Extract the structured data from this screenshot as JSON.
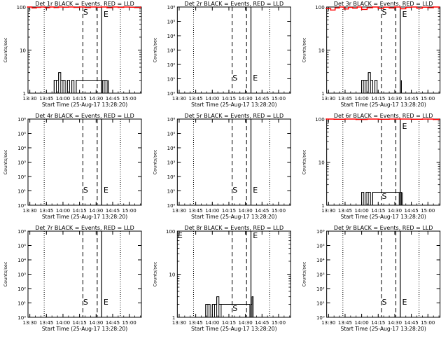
{
  "figure": {
    "xlabel": "Start Time (25-Aug-17 13:28:20)",
    "ylabel": "Counts/sec",
    "x_tick_labels": [
      "13:30",
      "13:45",
      "14:00",
      "14:15",
      "14:30",
      "14:45",
      "15:00"
    ],
    "colors": {
      "events": "#000000",
      "lld": "#ff0000"
    }
  },
  "chart_data": [
    {
      "type": "line",
      "title": "Det 1r BLACK = Events, RED = LLD",
      "xlabel": "Start Time (25-Aug-17 13:28:20)",
      "ylabel": "Counts/sec",
      "x_range": [
        "13:28:20",
        "15:11:00"
      ],
      "y_scale": "log",
      "ylim": [
        1,
        100
      ],
      "y_tick_labels": [
        "1",
        "10",
        "100"
      ],
      "y_tick_values": [
        1,
        10,
        100
      ],
      "annotations": [
        {
          "text": "S",
          "time": "14:18"
        },
        {
          "text": "E",
          "time": "14:37"
        }
      ],
      "vlines": [
        {
          "time": "13:43",
          "style": "dotted"
        },
        {
          "time": "14:18",
          "style": "dashed"
        },
        {
          "time": "14:31",
          "style": "dashed"
        },
        {
          "time": "14:35",
          "style": "solid"
        },
        {
          "time": "14:52",
          "style": "dotted"
        }
      ],
      "series": [
        {
          "color": "black",
          "x": [
            "13:50",
            "13:52",
            "13:54",
            "13:56",
            "13:58",
            "14:00",
            "14:02",
            "14:04",
            "14:06",
            "14:08",
            "14:10",
            "14:12",
            "14:35",
            "14:36",
            "14:38",
            "14:40",
            "14:41"
          ],
          "y": [
            1,
            2,
            2,
            3,
            2,
            2,
            1,
            2,
            1,
            2,
            1,
            2,
            1,
            2,
            2,
            1,
            2
          ]
        },
        {
          "color": "red",
          "x": [
            "13:28",
            "13:32",
            "13:36",
            "13:40",
            "13:44",
            "13:48",
            "13:52",
            "13:56",
            "14:00",
            "14:05",
            "14:10",
            "14:15",
            "14:20",
            "14:25",
            "14:30",
            "14:35",
            "14:40",
            "14:45",
            "14:50",
            "14:55",
            "15:00",
            "15:05",
            "15:10"
          ],
          "y": [
            100,
            95,
            98,
            100,
            96,
            100,
            97,
            100,
            99,
            100,
            98,
            100,
            97,
            100,
            99,
            100,
            96,
            100,
            98,
            100,
            99,
            97,
            100
          ]
        }
      ]
    },
    {
      "type": "line",
      "title": "Det 2r BLACK = Events, RED = LLD",
      "xlabel": "Start Time (25-Aug-17 13:28:20)",
      "ylabel": "Counts/sec",
      "x_range": [
        "13:28:20",
        "15:11:00"
      ],
      "y_scale": "log",
      "ylim": [
        1,
        1000000
      ],
      "y_tick_labels": [
        "10⁰",
        "10¹",
        "10²",
        "10³",
        "10⁴",
        "10⁵",
        "10⁶"
      ],
      "y_tick_values": [
        1,
        10,
        100,
        1000,
        10000,
        100000,
        1000000
      ],
      "annotations": [
        {
          "text": "S",
          "time": "14:18"
        },
        {
          "text": "E",
          "time": "14:37"
        }
      ],
      "vlines": [
        {
          "time": "13:43",
          "style": "dotted"
        },
        {
          "time": "14:18",
          "style": "dashed"
        },
        {
          "time": "14:31",
          "style": "dashed"
        },
        {
          "time": "14:35",
          "style": "solid"
        },
        {
          "time": "14:52",
          "style": "dotted"
        }
      ],
      "series": []
    },
    {
      "type": "line",
      "title": "Det 3r BLACK = Events, RED = LLD",
      "xlabel": "Start Time (25-Aug-17 13:28:20)",
      "ylabel": "Counts/sec",
      "x_range": [
        "13:28:20",
        "15:11:00"
      ],
      "y_scale": "log",
      "ylim": [
        1,
        100
      ],
      "y_tick_labels": [
        "1",
        "10",
        "100"
      ],
      "y_tick_values": [
        1,
        10,
        100
      ],
      "annotations": [
        {
          "text": "S",
          "time": "14:18"
        },
        {
          "text": "E",
          "time": "14:37"
        }
      ],
      "vlines": [
        {
          "time": "13:43",
          "style": "dotted"
        },
        {
          "time": "14:18",
          "style": "dashed"
        },
        {
          "time": "14:31",
          "style": "dashed"
        },
        {
          "time": "14:35",
          "style": "solid"
        },
        {
          "time": "14:52",
          "style": "dotted"
        }
      ],
      "series": [
        {
          "color": "black",
          "x": [
            "13:58",
            "14:00",
            "14:02",
            "14:04",
            "14:06",
            "14:08",
            "14:10",
            "14:12",
            "14:14",
            "14:34",
            "14:36"
          ],
          "y": [
            1,
            2,
            2,
            2,
            3,
            2,
            1,
            2,
            1,
            1,
            2
          ]
        },
        {
          "color": "red",
          "x": [
            "13:28",
            "13:32",
            "13:36",
            "13:40",
            "13:44",
            "13:48",
            "13:52",
            "13:56",
            "14:00",
            "14:05",
            "14:10",
            "14:15",
            "14:20",
            "14:25",
            "14:30",
            "14:35",
            "14:40",
            "14:45",
            "14:50",
            "14:55",
            "15:00",
            "15:05",
            "15:10"
          ],
          "y": [
            92,
            85,
            95,
            100,
            90,
            98,
            94,
            100,
            88,
            96,
            100,
            93,
            99,
            95,
            100,
            91,
            98,
            100,
            94,
            99,
            96,
            100,
            97
          ]
        }
      ]
    },
    {
      "type": "line",
      "title": "Det 4r BLACK = Events, RED = LLD",
      "xlabel": "Start Time (25-Aug-17 13:28:20)",
      "ylabel": "Counts/sec",
      "x_range": [
        "13:28:20",
        "15:11:00"
      ],
      "y_scale": "log",
      "ylim": [
        1,
        1000000
      ],
      "y_tick_labels": [
        "10⁰",
        "10¹",
        "10²",
        "10³",
        "10⁴",
        "10⁵",
        "10⁶"
      ],
      "y_tick_values": [
        1,
        10,
        100,
        1000,
        10000,
        100000,
        1000000
      ],
      "annotations": [
        {
          "text": "S",
          "time": "14:18"
        },
        {
          "text": "E",
          "time": "14:37"
        }
      ],
      "vlines": [
        {
          "time": "13:43",
          "style": "dotted"
        },
        {
          "time": "14:18",
          "style": "dashed"
        },
        {
          "time": "14:31",
          "style": "dashed"
        },
        {
          "time": "14:35",
          "style": "solid"
        },
        {
          "time": "14:52",
          "style": "dotted"
        }
      ],
      "series": []
    },
    {
      "type": "line",
      "title": "Det 5r BLACK = Events, RED = LLD",
      "xlabel": "Start Time (25-Aug-17 13:28:20)",
      "ylabel": "Counts/sec",
      "x_range": [
        "13:28:20",
        "15:11:00"
      ],
      "y_scale": "log",
      "ylim": [
        1,
        1000000
      ],
      "y_tick_labels": [
        "10⁰",
        "10¹",
        "10²",
        "10³",
        "10⁴",
        "10⁵",
        "10⁶"
      ],
      "y_tick_values": [
        1,
        10,
        100,
        1000,
        10000,
        100000,
        1000000
      ],
      "annotations": [
        {
          "text": "S",
          "time": "14:18"
        },
        {
          "text": "E",
          "time": "14:37"
        }
      ],
      "vlines": [
        {
          "time": "13:43",
          "style": "dotted"
        },
        {
          "time": "14:18",
          "style": "dashed"
        },
        {
          "time": "14:31",
          "style": "dashed"
        },
        {
          "time": "14:35",
          "style": "solid"
        },
        {
          "time": "14:52",
          "style": "dotted"
        }
      ],
      "series": []
    },
    {
      "type": "line",
      "title": "Det 6r BLACK = Events, RED = LLD",
      "xlabel": "Start Time (25-Aug-17 13:28:20)",
      "ylabel": "Counts/sec",
      "x_range": [
        "13:28:20",
        "15:11:00"
      ],
      "y_scale": "log",
      "ylim": [
        1,
        100
      ],
      "y_tick_labels": [
        "1",
        "10",
        "100"
      ],
      "y_tick_values": [
        1,
        10,
        100
      ],
      "annotations": [
        {
          "text": "S",
          "time": "14:18"
        },
        {
          "text": "E",
          "time": "14:37"
        }
      ],
      "vlines": [
        {
          "time": "13:43",
          "style": "dotted"
        },
        {
          "time": "14:18",
          "style": "dashed"
        },
        {
          "time": "14:31",
          "style": "dashed"
        },
        {
          "time": "14:35",
          "style": "solid"
        },
        {
          "time": "14:52",
          "style": "dotted"
        }
      ],
      "series": [
        {
          "color": "black",
          "x": [
            "13:58",
            "14:00",
            "14:02",
            "14:04",
            "14:06",
            "14:08",
            "14:10",
            "14:34",
            "14:35",
            "14:36",
            "14:37"
          ],
          "y": [
            1,
            2,
            1,
            2,
            2,
            1,
            2,
            1,
            2,
            1,
            2
          ]
        },
        {
          "color": "red",
          "x": [
            "13:28",
            "13:35",
            "13:45",
            "13:55",
            "14:05",
            "14:15",
            "14:25",
            "14:35",
            "14:45",
            "14:55",
            "15:05",
            "15:10"
          ],
          "y": [
            100,
            99,
            100,
            98,
            100,
            99,
            100,
            100,
            99,
            100,
            98,
            100
          ]
        }
      ]
    },
    {
      "type": "line",
      "title": "Det 7r BLACK = Events, RED = LLD",
      "xlabel": "Start Time (25-Aug-17 13:28:20)",
      "ylabel": "Counts/sec",
      "x_range": [
        "13:28:20",
        "15:11:00"
      ],
      "y_scale": "log",
      "ylim": [
        1,
        1000000
      ],
      "y_tick_labels": [
        "10⁰",
        "10¹",
        "10²",
        "10³",
        "10⁴",
        "10⁵",
        "10⁶"
      ],
      "y_tick_values": [
        1,
        10,
        100,
        1000,
        10000,
        100000,
        1000000
      ],
      "annotations": [
        {
          "text": "S",
          "time": "14:18"
        },
        {
          "text": "E",
          "time": "14:37"
        }
      ],
      "vlines": [
        {
          "time": "13:43",
          "style": "dotted"
        },
        {
          "time": "14:18",
          "style": "dashed"
        },
        {
          "time": "14:31",
          "style": "dashed"
        },
        {
          "time": "14:35",
          "style": "solid"
        },
        {
          "time": "14:52",
          "style": "dotted"
        }
      ],
      "series": []
    },
    {
      "type": "line",
      "title": "Det 8r BLACK = Events, RED = LLD",
      "xlabel": "Start Time (25-Aug-17 13:28:20)",
      "ylabel": "Counts/sec",
      "x_range": [
        "13:28:20",
        "15:11:00"
      ],
      "y_scale": "log",
      "ylim": [
        1,
        100
      ],
      "y_tick_labels": [
        "1",
        "10",
        "100"
      ],
      "y_tick_values": [
        1,
        10,
        100
      ],
      "annotations": [
        {
          "text": "E",
          "time": "13:29"
        },
        {
          "text": "S",
          "time": "14:18"
        },
        {
          "text": "E",
          "time": "14:37"
        }
      ],
      "vlines": [
        {
          "time": "13:43",
          "style": "dotted"
        },
        {
          "time": "14:18",
          "style": "dashed"
        },
        {
          "time": "14:31",
          "style": "dashed"
        },
        {
          "time": "14:35",
          "style": "solid"
        },
        {
          "time": "14:52",
          "style": "dotted"
        }
      ],
      "series": [
        {
          "color": "black",
          "x": [
            "13:52",
            "13:54",
            "13:56",
            "13:58",
            "14:00",
            "14:02",
            "14:04",
            "14:06",
            "14:08",
            "14:34",
            "14:35",
            "14:36",
            "14:37"
          ],
          "y": [
            1,
            2,
            2,
            1,
            2,
            2,
            3,
            2,
            2,
            1,
            2,
            3,
            2
          ]
        }
      ]
    },
    {
      "type": "line",
      "title": "Det 9r BLACK = Events, RED = LLD",
      "xlabel": "Start Time (25-Aug-17 13:28:20)",
      "ylabel": "Counts/sec",
      "x_range": [
        "13:28:20",
        "15:11:00"
      ],
      "y_scale": "log",
      "ylim": [
        1,
        1000000
      ],
      "y_tick_labels": [
        "10⁰",
        "10¹",
        "10²",
        "10³",
        "10⁴",
        "10⁵",
        "10⁶"
      ],
      "y_tick_values": [
        1,
        10,
        100,
        1000,
        10000,
        100000,
        1000000
      ],
      "annotations": [
        {
          "text": "S",
          "time": "14:18"
        },
        {
          "text": "E",
          "time": "14:37"
        }
      ],
      "vlines": [
        {
          "time": "13:43",
          "style": "dotted"
        },
        {
          "time": "14:18",
          "style": "dashed"
        },
        {
          "time": "14:31",
          "style": "dashed"
        },
        {
          "time": "14:35",
          "style": "solid"
        },
        {
          "time": "14:52",
          "style": "dotted"
        }
      ],
      "series": []
    }
  ]
}
